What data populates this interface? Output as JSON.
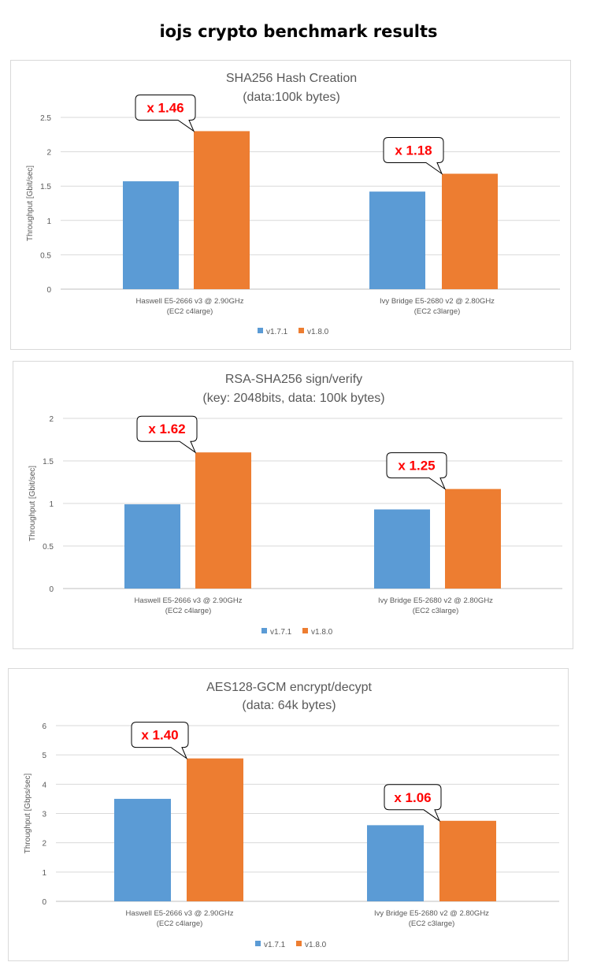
{
  "page_title": "iojs crypto benchmark results",
  "colors": {
    "v171": "#5b9bd5",
    "v180": "#ed7d31",
    "callout": "#ff0000"
  },
  "chart_data": [
    {
      "type": "bar",
      "title_line1": "SHA256 Hash Creation",
      "title_line2": "(data:100k bytes)",
      "ylabel": "Throughput [Gbit/sec]",
      "ylim": [
        0,
        2.5
      ],
      "ticks": [
        0,
        0.5,
        1,
        1.5,
        2,
        2.5
      ],
      "tick_labels": [
        "0",
        "0.5",
        "1",
        "1.5",
        "2",
        "2.5"
      ],
      "categories": [
        {
          "line1": "Haswell E5-2666 v3 @ 2.90GHz",
          "line2": "(EC2 c4large)"
        },
        {
          "line1": "Ivy Bridge E5-2680 v2 @ 2.80GHz",
          "line2": "(EC2 c3large)"
        }
      ],
      "series": [
        {
          "name": "v1.7.1",
          "values": [
            1.57,
            1.42
          ]
        },
        {
          "name": "v1.8.0",
          "values": [
            2.3,
            1.68
          ]
        }
      ],
      "callouts": [
        "x 1.46",
        "x 1.18"
      ],
      "legend": [
        "v1.7.1",
        "v1.8.0"
      ]
    },
    {
      "type": "bar",
      "title_line1": "RSA-SHA256 sign/verify",
      "title_line2": "(key:  2048bits, data: 100k bytes)",
      "ylabel": "Throughput [Gbit/sec]",
      "ylim": [
        0,
        2
      ],
      "ticks": [
        0,
        0.5,
        1,
        1.5,
        2
      ],
      "tick_labels": [
        "0",
        "0.5",
        "1",
        "1.5",
        "2"
      ],
      "categories": [
        {
          "line1": "Haswell E5-2666 v3 @ 2.90GHz",
          "line2": "(EC2 c4large)"
        },
        {
          "line1": "Ivy Bridge E5-2680 v2 @ 2.80GHz",
          "line2": "(EC2 c3large)"
        }
      ],
      "series": [
        {
          "name": "v1.7.1",
          "values": [
            0.99,
            0.93
          ]
        },
        {
          "name": "v1.8.0",
          "values": [
            1.6,
            1.17
          ]
        }
      ],
      "callouts": [
        "x 1.62",
        "x 1.25"
      ],
      "legend": [
        "v1.7.1",
        "v1.8.0"
      ]
    },
    {
      "type": "bar",
      "title_line1": "AES128-GCM encrypt/decypt",
      "title_line2": "(data: 64k bytes)",
      "ylabel": "Throughput [Gbps/sec]",
      "ylim": [
        0,
        6
      ],
      "ticks": [
        0,
        1,
        2,
        3,
        4,
        5,
        6
      ],
      "tick_labels": [
        "0",
        "1",
        "2",
        "3",
        "4",
        "5",
        "6"
      ],
      "categories": [
        {
          "line1": "Haswell E5-2666 v3 @ 2.90GHz",
          "line2": "(EC2 c4large)"
        },
        {
          "line1": "Ivy Bridge E5-2680 v2 @ 2.80GHz",
          "line2": "(EC2 c3large)"
        }
      ],
      "series": [
        {
          "name": "v1.7.1",
          "values": [
            3.5,
            2.6
          ]
        },
        {
          "name": "v1.8.0",
          "values": [
            4.88,
            2.75
          ]
        }
      ],
      "callouts": [
        "x 1.40",
        "x 1.06"
      ],
      "legend": [
        "v1.7.1",
        "v1.8.0"
      ]
    }
  ]
}
